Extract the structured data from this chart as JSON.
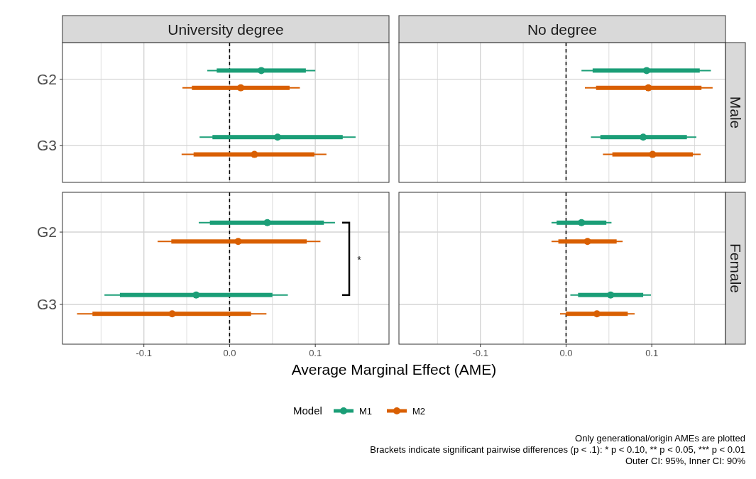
{
  "chart_data": [
    {
      "type": "scatter",
      "orientation": "horizontal",
      "title": "University degree",
      "categories": [
        "G2",
        "G3"
      ],
      "xlim": [
        -0.195,
        0.186
      ],
      "xticks": [
        {
          "value": -0.15,
          "label": null
        },
        -0.1,
        {
          "value": -0.05,
          "label": null
        },
        0,
        {
          "value": 0.05,
          "label": null
        },
        0.1,
        {
          "value": 0.15,
          "label": null
        }
      ],
      "grid": true,
      "tick_labels": "y",
      "marker": "circle",
      "ref_lines": [
        {
          "axis": "x",
          "value": 0,
          "line_style": "dashed",
          "color": "#000000"
        }
      ],
      "series": [
        {
          "color": "#1b9e77",
          "values": [
            0.037,
            0.056
          ],
          "errors": [
            [
              -0.026,
              0.1
            ],
            [
              -0.035,
              0.147
            ]
          ]
        },
        {
          "color": "#d95f02",
          "values": [
            0.013,
            0.029
          ],
          "errors": [
            [
              -0.055,
              0.082
            ],
            [
              -0.056,
              0.113
            ]
          ]
        },
        {
          "type": "bar",
          "color": "#1b9e77",
          "base": [
            -0.015,
            -0.02
          ],
          "values": [
            0.104,
            0.152
          ]
        },
        {
          "type": "bar",
          "color": "#d95f02",
          "base": [
            -0.044,
            -0.042
          ],
          "values": [
            0.114,
            0.141
          ]
        }
      ]
    },
    {
      "type": "scatter",
      "orientation": "horizontal",
      "title": "No degree",
      "y2label": "Male",
      "categories": [
        null,
        null
      ],
      "xlim": [
        -0.195,
        0.186
      ],
      "xticks": [
        {
          "value": -0.15,
          "label": null
        },
        -0.1,
        {
          "value": -0.05,
          "label": null
        },
        0,
        {
          "value": 0.05,
          "label": null
        },
        0.1,
        {
          "value": 0.15,
          "label": null
        }
      ],
      "grid": true,
      "tick_labels": false,
      "marker": "circle",
      "ref_lines": [
        {
          "axis": "x",
          "value": 0,
          "line_style": "dashed",
          "color": "#000000"
        }
      ],
      "series": [
        {
          "color": "#1b9e77",
          "values": [
            0.094,
            0.09
          ],
          "errors": [
            [
              0.018,
              0.169
            ],
            [
              0.029,
              0.152
            ]
          ]
        },
        {
          "color": "#d95f02",
          "values": [
            0.096,
            0.101
          ],
          "errors": [
            [
              0.022,
              0.171
            ],
            [
              0.043,
              0.157
            ]
          ]
        },
        {
          "type": "bar",
          "color": "#1b9e77",
          "base": [
            0.031,
            0.04
          ],
          "values": [
            0.125,
            0.101
          ]
        },
        {
          "type": "bar",
          "color": "#d95f02",
          "base": [
            0.035,
            0.054
          ],
          "values": [
            0.123,
            0.094
          ]
        }
      ]
    },
    {
      "type": "scatter",
      "orientation": "horizontal",
      "xlabel": "Average Marginal Effect (AME)",
      "legend_title": "Model",
      "legend": "bottom",
      "categories": [
        "G2",
        "G3"
      ],
      "xlim": [
        -0.195,
        0.186
      ],
      "xticks": [
        {
          "value": -0.15,
          "label": null
        },
        -0.1,
        {
          "value": -0.05,
          "label": null
        },
        {
          "value": 0,
          "label": "0.0"
        },
        {
          "value": 0.05,
          "label": null
        },
        0.1,
        {
          "value": 0.15,
          "label": null
        }
      ],
      "grid": true,
      "marker": "circle",
      "ref_lines": [
        {
          "axis": "x",
          "value": 0,
          "line_style": "dashed",
          "color": "#000000"
        }
      ],
      "annotations": [
        "*"
      ],
      "series": [
        {
          "name": "M1",
          "color": "#1b9e77",
          "values": [
            0.044,
            -0.039
          ],
          "errors": [
            [
              -0.036,
              0.123
            ],
            [
              -0.146,
              0.068
            ]
          ]
        },
        {
          "name": "M2",
          "color": "#d95f02",
          "values": [
            0.01,
            -0.067
          ],
          "errors": [
            [
              -0.084,
              0.106
            ],
            [
              -0.178,
              0.043
            ]
          ]
        },
        {
          "type": "bar",
          "color": "#1b9e77",
          "base": [
            -0.023,
            -0.128
          ],
          "values": [
            0.133,
            0.178
          ]
        },
        {
          "type": "bar",
          "color": "#d95f02",
          "base": [
            -0.068,
            -0.16
          ],
          "values": [
            0.158,
            0.185
          ]
        }
      ]
    },
    {
      "type": "scatter",
      "orientation": "horizontal",
      "y2label": "Female",
      "categories": [
        null,
        null
      ],
      "xlim": [
        -0.195,
        0.186
      ],
      "xticks": [
        {
          "value": -0.15,
          "label": null
        },
        -0.1,
        {
          "value": -0.05,
          "label": null
        },
        {
          "value": 0,
          "label": "0.0"
        },
        {
          "value": 0.05,
          "label": null
        },
        0.1,
        {
          "value": 0.15,
          "label": null
        }
      ],
      "grid": true,
      "tick_labels": "x",
      "marker": "circle",
      "ref_lines": [
        {
          "axis": "x",
          "value": 0,
          "line_style": "dashed",
          "color": "#000000"
        }
      ],
      "annotations": [
        "Only generational/origin AMEs are plotted",
        "Brackets indicate significant pairwise differences (p < .1): * p < 0.10, ** p < 0.05, *** p < 0.01",
        "Outer CI: 95%, Inner CI: 90%"
      ],
      "series": [
        {
          "color": "#1b9e77",
          "values": [
            0.018,
            0.052
          ],
          "errors": [
            [
              -0.017,
              0.053
            ],
            [
              0.005,
              0.099
            ]
          ]
        },
        {
          "color": "#d95f02",
          "values": [
            0.025,
            0.036
          ],
          "errors": [
            [
              -0.017,
              0.066
            ],
            [
              -0.007,
              0.08
            ]
          ]
        },
        {
          "type": "bar",
          "color": "#1b9e77",
          "base": [
            -0.011,
            0.014
          ],
          "values": [
            0.058,
            0.076
          ]
        },
        {
          "type": "bar",
          "color": "#d95f02",
          "base": [
            -0.009,
            0
          ],
          "values": [
            0.068,
            0.072
          ]
        }
      ]
    }
  ]
}
